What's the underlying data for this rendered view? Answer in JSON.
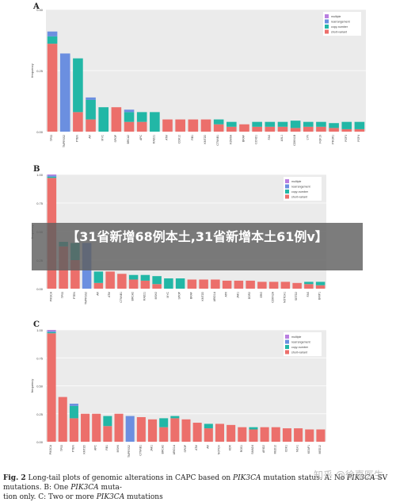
{
  "overlay": {
    "title": "【31省新增68例本土,31省新增本土61例v】"
  },
  "caption": {
    "label": "Fig. 2",
    "text": " Long-tail plots of genomic alterations in CAPC based on ",
    "gene1": "PIK3CA",
    "text2": " mutation status. A: No ",
    "gene2": "PIK3CA",
    "text3": " SV mutations. B: One ",
    "gene3": "PIK3CA",
    "text4": " muta-",
    "line2": "tion only. C: Two or more ",
    "gene4": "PIK3CA",
    "text5": " mutations"
  },
  "watermark": "知乎 @徐嘉医生",
  "colors": {
    "multiple": "#b97fe0",
    "rearrangement": "#6b8fe0",
    "copy_number": "#22b7a6",
    "short_variant": "#ec6f6b",
    "grid": "#e6e6e6",
    "panel_bg": "#ebebeb"
  },
  "chart_data": [
    {
      "type": "bar",
      "panel": "A",
      "ylabel": "frequency",
      "ylim": [
        0,
        0.5
      ],
      "yticks": [
        "0.00",
        "0.25",
        "0.50"
      ],
      "legend": [
        "multiple",
        "rearrangement",
        "copy-number",
        "short-variant"
      ],
      "legend_position": "top-right",
      "categories": [
        "TP53",
        "TMPRSS2",
        "PTEN",
        "AR",
        "MYC",
        "SPOP",
        "BRCA2",
        "APC",
        "RAD21",
        "ATM",
        "CDK12",
        "RB1",
        "KMT2D",
        "CTNNB1",
        "KDM6A",
        "BRAF",
        "CCND1",
        "FAS",
        "AXL1",
        "CDKN1B",
        "LYN",
        "FGF19",
        "PIK3R1",
        "FGF3",
        "FGF4"
      ],
      "series": [
        {
          "name": "short-variant",
          "values": [
            0.36,
            0,
            0.08,
            0.05,
            0,
            0.1,
            0.04,
            0.04,
            0,
            0.05,
            0.05,
            0.05,
            0.05,
            0.03,
            0.02,
            0.03,
            0.02,
            0.02,
            0.02,
            0.015,
            0.02,
            0.02,
            0.015,
            0.01,
            0.01
          ]
        },
        {
          "name": "copy-number",
          "values": [
            0.03,
            0,
            0.22,
            0.08,
            0.1,
            0,
            0.04,
            0.04,
            0.08,
            0,
            0,
            0,
            0,
            0.02,
            0.02,
            0,
            0.02,
            0.02,
            0.02,
            0.03,
            0.02,
            0.02,
            0.02,
            0.03,
            0.03
          ]
        },
        {
          "name": "rearrangement",
          "values": [
            0.02,
            0.32,
            0,
            0.01,
            0,
            0,
            0.01,
            0,
            0,
            0,
            0,
            0,
            0,
            0,
            0,
            0,
            0,
            0,
            0,
            0,
            0,
            0,
            0,
            0,
            0
          ]
        },
        {
          "name": "multiple",
          "values": [
            0,
            0,
            0,
            0,
            0,
            0,
            0,
            0,
            0,
            0,
            0,
            0,
            0,
            0,
            0,
            0,
            0,
            0,
            0,
            0,
            0,
            0,
            0,
            0,
            0
          ]
        }
      ]
    },
    {
      "type": "bar",
      "panel": "B",
      "ylabel": "frequency",
      "ylim": [
        0,
        1.0
      ],
      "yticks": [
        "0.00",
        "0.25",
        "0.50",
        "0.75",
        "1.00"
      ],
      "legend": [
        "multiple",
        "rearrangement",
        "copy-number",
        "short-variant"
      ],
      "legend_position": "top-right",
      "categories": [
        "PIK3CA",
        "TP53",
        "PTEN",
        "TMPRSS2",
        "AR",
        "ATM",
        "CTNNB1",
        "BRCA2",
        "RAD21",
        "MSH2",
        "MYC",
        "SPOP",
        "BRAF",
        "KMT2D",
        "ARID1A",
        "ATR",
        "JAK1",
        "DDR2",
        "ERG",
        "CDKN2A",
        "NOTCH1",
        "SETD2",
        "FAS",
        "BRIP1"
      ],
      "series": [
        {
          "name": "short-variant",
          "values": [
            0.97,
            0.37,
            0.25,
            0,
            0.05,
            0.15,
            0.13,
            0.08,
            0.07,
            0.04,
            0,
            0,
            0.08,
            0.08,
            0.08,
            0.07,
            0.07,
            0.07,
            0.06,
            0.06,
            0.06,
            0.05,
            0.04,
            0.03
          ]
        },
        {
          "name": "copy-number",
          "values": [
            0.01,
            0.04,
            0.15,
            0,
            0.1,
            0,
            0,
            0.04,
            0.05,
            0.07,
            0.09,
            0.09,
            0,
            0,
            0,
            0,
            0,
            0,
            0,
            0,
            0,
            0,
            0.02,
            0.03
          ]
        },
        {
          "name": "rearrangement",
          "values": [
            0.01,
            0,
            0,
            0.4,
            0,
            0,
            0,
            0,
            0,
            0,
            0,
            0,
            0,
            0,
            0,
            0,
            0,
            0,
            0,
            0,
            0,
            0,
            0,
            0
          ]
        },
        {
          "name": "multiple",
          "values": [
            0.01,
            0,
            0,
            0,
            0,
            0,
            0,
            0,
            0,
            0,
            0,
            0,
            0,
            0,
            0,
            0,
            0,
            0,
            0,
            0,
            0,
            0,
            0,
            0
          ]
        }
      ]
    },
    {
      "type": "bar",
      "panel": "C",
      "ylabel": "frequency",
      "ylim": [
        0,
        1.0
      ],
      "yticks": [
        "0.00",
        "0.25",
        "0.50",
        "0.75",
        "1.00"
      ],
      "legend": [
        "multiple",
        "rearrangement",
        "copy-number",
        "short-variant"
      ],
      "legend_position": "top-right",
      "categories": [
        "PIK3CA",
        "TP53",
        "PTEN",
        "KMT2D",
        "APC",
        "RB1",
        "MSH6",
        "TMPRSS2",
        "CTNNB1",
        "JAK1",
        "BRCA2",
        "ARID1A",
        "SPOP",
        "ATM",
        "AR",
        "NOTCH",
        "KDR",
        "ROS1",
        "SMAD4",
        "ARID2",
        "MED12",
        "CDK1",
        "MLH1",
        "KEAP1",
        "MED12"
      ],
      "series": [
        {
          "name": "short-variant",
          "values": [
            0.97,
            0.4,
            0.21,
            0.25,
            0.25,
            0.14,
            0.25,
            0,
            0.22,
            0.2,
            0.13,
            0.21,
            0.2,
            0.17,
            0.12,
            0.16,
            0.15,
            0.13,
            0.11,
            0.13,
            0.13,
            0.12,
            0.12,
            0.11,
            0.11
          ]
        },
        {
          "name": "copy-number",
          "values": [
            0.01,
            0,
            0.11,
            0,
            0,
            0.09,
            0,
            0,
            0,
            0,
            0.08,
            0.02,
            0,
            0,
            0.04,
            0,
            0,
            0,
            0.02,
            0,
            0,
            0,
            0,
            0,
            0
          ]
        },
        {
          "name": "rearrangement",
          "values": [
            0.01,
            0,
            0.02,
            0,
            0,
            0,
            0,
            0.23,
            0,
            0,
            0,
            0,
            0,
            0,
            0,
            0,
            0,
            0,
            0,
            0,
            0,
            0,
            0,
            0,
            0
          ]
        },
        {
          "name": "multiple",
          "values": [
            0.01,
            0,
            0,
            0,
            0,
            0,
            0,
            0,
            0,
            0,
            0,
            0,
            0,
            0,
            0,
            0,
            0,
            0,
            0,
            0,
            0,
            0,
            0,
            0,
            0
          ]
        }
      ]
    }
  ]
}
